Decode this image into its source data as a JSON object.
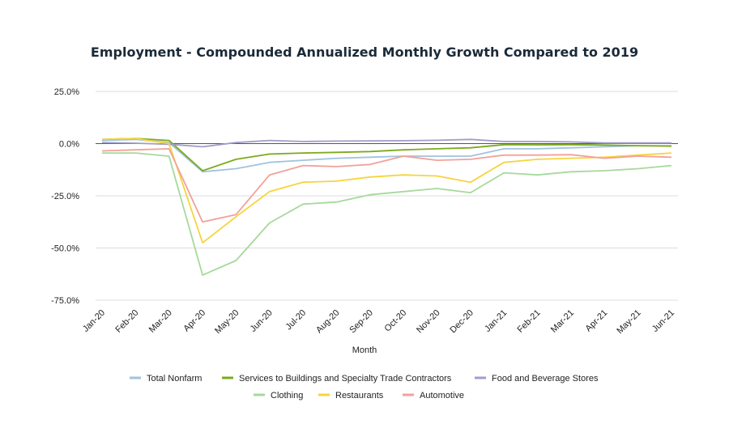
{
  "chart_data": {
    "type": "line",
    "title": "Employment - Compounded Annualized Monthly Growth Compared to 2019",
    "xlabel": "Month",
    "ylabel": "",
    "ylim": [
      -75,
      25
    ],
    "yticks": [
      {
        "value": 25,
        "label": "25.0%"
      },
      {
        "value": 0,
        "label": "0.0%"
      },
      {
        "value": -25,
        "label": "-25.0%"
      },
      {
        "value": -50,
        "label": "-50.0%"
      },
      {
        "value": -75,
        "label": "-75.0%"
      }
    ],
    "grid": true,
    "legend_position": "bottom",
    "categories": [
      "Jan-20",
      "Feb-20",
      "Mar-20",
      "Apr-20",
      "May-20",
      "Jun-20",
      "Jul-20",
      "Aug-20",
      "Sep-20",
      "Oct-20",
      "Nov-20",
      "Dec-20",
      "Jan-21",
      "Feb-21",
      "Mar-21",
      "Apr-21",
      "May-21",
      "Jun-21"
    ],
    "series": [
      {
        "name": "Total Nonfarm",
        "color": "#9fc4dd",
        "values": [
          1.5,
          2.0,
          0.5,
          -13.5,
          -12.0,
          -9.0,
          -8.0,
          -7.0,
          -6.5,
          -6.0,
          -6.0,
          -6.0,
          -2.5,
          -2.5,
          -2.0,
          -1.5,
          -1.0,
          -1.0
        ]
      },
      {
        "name": "Services to Buildings and Specialty Trade Contractors",
        "color": "#7caa1c",
        "values": [
          2.0,
          2.5,
          1.5,
          -13.0,
          -7.5,
          -5.0,
          -4.5,
          -4.2,
          -3.8,
          -3.0,
          -2.5,
          -2.0,
          -0.5,
          -0.6,
          -0.5,
          -0.7,
          -1.0,
          -1.2
        ]
      },
      {
        "name": "Food and Beverage Stores",
        "color": "#a09ec8",
        "values": [
          0.5,
          0.2,
          -0.3,
          -1.5,
          0.5,
          1.5,
          1.0,
          1.2,
          1.3,
          1.4,
          1.6,
          2.0,
          1.0,
          1.0,
          0.8,
          0.3,
          0.3,
          0.3
        ]
      },
      {
        "name": "Clothing",
        "color": "#a6d99c",
        "values": [
          -4.5,
          -4.5,
          -6.0,
          -63.0,
          -56.0,
          -38.0,
          -29.0,
          -28.0,
          -24.5,
          -23.0,
          -21.5,
          -23.5,
          -14.0,
          -15.0,
          -13.5,
          -13.0,
          -12.0,
          -10.5
        ]
      },
      {
        "name": "Restaurants",
        "color": "#f6d43e",
        "values": [
          2.0,
          2.5,
          0.0,
          -47.5,
          -35.0,
          -23.0,
          -18.5,
          -18.0,
          -16.0,
          -15.0,
          -15.5,
          -18.5,
          -9.0,
          -7.5,
          -7.0,
          -6.5,
          -5.5,
          -4.5
        ]
      },
      {
        "name": "Automotive",
        "color": "#f2a19a",
        "values": [
          -3.5,
          -3.0,
          -2.5,
          -37.5,
          -34.0,
          -15.0,
          -10.5,
          -11.0,
          -10.0,
          -6.0,
          -8.0,
          -7.5,
          -5.5,
          -5.5,
          -5.3,
          -7.0,
          -6.0,
          -6.5
        ]
      }
    ]
  }
}
